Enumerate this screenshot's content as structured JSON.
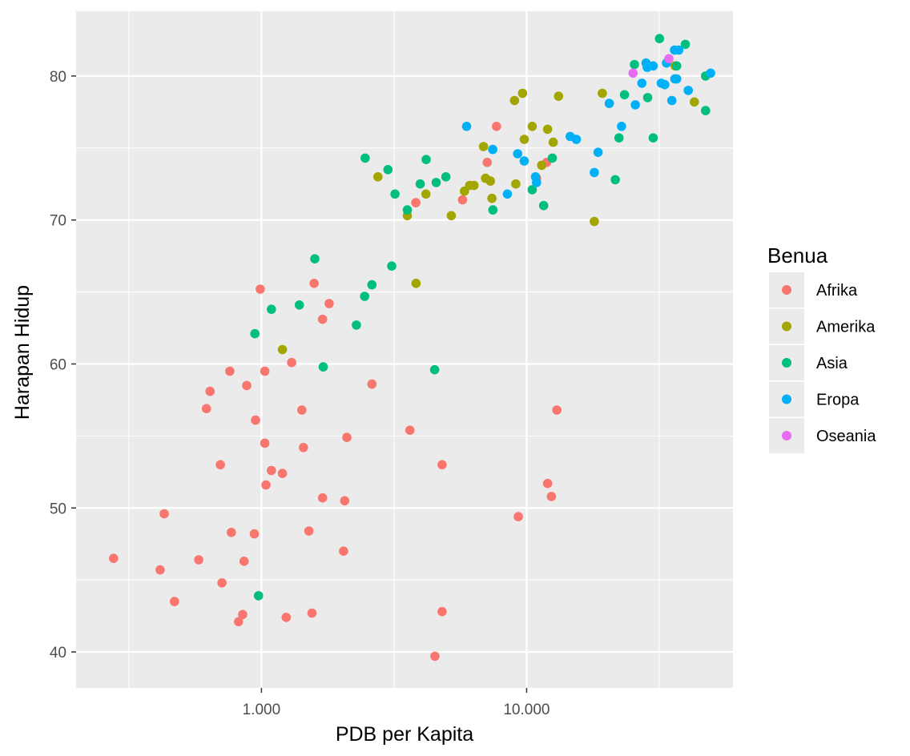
{
  "chart_data": {
    "type": "scatter",
    "title": "",
    "xlabel": "PDB per Kapita",
    "ylabel": "Harapan Hidup",
    "x_scale": "log10",
    "xlim": [
      200,
      60000
    ],
    "ylim": [
      37.5,
      84.5
    ],
    "x_ticks": [
      {
        "value": 1000,
        "label": "1.000"
      },
      {
        "value": 10000,
        "label": "10.000"
      }
    ],
    "y_ticks": [
      {
        "value": 40,
        "label": "40"
      },
      {
        "value": 50,
        "label": "50"
      },
      {
        "value": 60,
        "label": "60"
      },
      {
        "value": 70,
        "label": "70"
      },
      {
        "value": 80,
        "label": "80"
      }
    ],
    "legend_title": "Benua",
    "legend_position": "right",
    "grid": true,
    "series": [
      {
        "name": "Afrika",
        "color": "#F8766D",
        "points": [
          [
            277,
            46.5
          ],
          [
            415,
            45.7
          ],
          [
            430,
            49.6
          ],
          [
            470,
            43.5
          ],
          [
            580,
            46.4
          ],
          [
            620,
            56.9
          ],
          [
            640,
            58.1
          ],
          [
            700,
            53.0
          ],
          [
            710,
            44.8
          ],
          [
            760,
            59.5
          ],
          [
            770,
            48.3
          ],
          [
            820,
            42.1
          ],
          [
            850,
            42.6
          ],
          [
            860,
            46.3
          ],
          [
            880,
            58.5
          ],
          [
            940,
            48.2
          ],
          [
            950,
            56.1
          ],
          [
            990,
            65.2
          ],
          [
            1030,
            59.5
          ],
          [
            1030,
            54.5
          ],
          [
            1040,
            51.6
          ],
          [
            1090,
            52.6
          ],
          [
            1200,
            52.4
          ],
          [
            1240,
            42.4
          ],
          [
            1300,
            60.1
          ],
          [
            1420,
            56.8
          ],
          [
            1440,
            54.2
          ],
          [
            1510,
            48.4
          ],
          [
            1550,
            42.7
          ],
          [
            1580,
            65.6
          ],
          [
            1700,
            63.1
          ],
          [
            1700,
            50.7
          ],
          [
            1800,
            64.2
          ],
          [
            2040,
            47.0
          ],
          [
            2060,
            50.5
          ],
          [
            2100,
            54.9
          ],
          [
            2610,
            58.6
          ],
          [
            3630,
            55.4
          ],
          [
            3820,
            71.2
          ],
          [
            4510,
            39.7
          ],
          [
            4800,
            53.0
          ],
          [
            4800,
            42.8
          ],
          [
            5730,
            71.4
          ],
          [
            7100,
            74.0
          ],
          [
            7700,
            76.5
          ],
          [
            9300,
            49.4
          ],
          [
            10900,
            72.9
          ],
          [
            11900,
            74.0
          ],
          [
            12000,
            51.7
          ],
          [
            12400,
            50.8
          ],
          [
            13000,
            56.8
          ]
        ]
      },
      {
        "name": "Amerika",
        "color": "#A3A500",
        "points": [
          [
            1200,
            61.0
          ],
          [
            2750,
            73.0
          ],
          [
            3550,
            70.3
          ],
          [
            3830,
            65.6
          ],
          [
            4170,
            71.8
          ],
          [
            5200,
            70.3
          ],
          [
            5830,
            72.0
          ],
          [
            6100,
            72.4
          ],
          [
            6330,
            72.4
          ],
          [
            6880,
            75.1
          ],
          [
            7000,
            72.9
          ],
          [
            7300,
            72.7
          ],
          [
            7400,
            71.5
          ],
          [
            9000,
            78.3
          ],
          [
            9100,
            72.5
          ],
          [
            9650,
            78.8
          ],
          [
            9800,
            75.6
          ],
          [
            10500,
            76.5
          ],
          [
            11400,
            73.8
          ],
          [
            12000,
            76.3
          ],
          [
            12600,
            75.4
          ],
          [
            13200,
            78.6
          ],
          [
            18000,
            69.9
          ],
          [
            19300,
            78.8
          ],
          [
            36300,
            80.7
          ],
          [
            42900,
            78.2
          ]
        ]
      },
      {
        "name": "Asia",
        "color": "#00BF7D",
        "points": [
          [
            975,
            43.9
          ],
          [
            945,
            62.1
          ],
          [
            1090,
            63.8
          ],
          [
            1390,
            64.1
          ],
          [
            1590,
            67.3
          ],
          [
            1710,
            59.8
          ],
          [
            2280,
            62.7
          ],
          [
            2460,
            74.3
          ],
          [
            2450,
            64.7
          ],
          [
            2610,
            65.5
          ],
          [
            3000,
            73.5
          ],
          [
            3100,
            66.8
          ],
          [
            3190,
            71.8
          ],
          [
            3550,
            70.7
          ],
          [
            3970,
            72.5
          ],
          [
            4180,
            74.2
          ],
          [
            4500,
            59.6
          ],
          [
            4560,
            72.6
          ],
          [
            4960,
            73.0
          ],
          [
            7460,
            70.7
          ],
          [
            10500,
            72.1
          ],
          [
            11600,
            71.0
          ],
          [
            12500,
            74.3
          ],
          [
            21600,
            72.8
          ],
          [
            22300,
            75.7
          ],
          [
            23400,
            78.7
          ],
          [
            25500,
            80.8
          ],
          [
            28600,
            78.5
          ],
          [
            30000,
            75.7
          ],
          [
            31700,
            82.6
          ],
          [
            36800,
            80.7
          ],
          [
            39700,
            82.2
          ],
          [
            47300,
            80.0
          ],
          [
            47300,
            77.6
          ]
        ]
      },
      {
        "name": "Eropa",
        "color": "#00B0F6",
        "points": [
          [
            5940,
            76.5
          ],
          [
            7450,
            74.9
          ],
          [
            8460,
            71.8
          ],
          [
            9250,
            74.6
          ],
          [
            9790,
            74.1
          ],
          [
            10800,
            73.0
          ],
          [
            10900,
            72.6
          ],
          [
            14600,
            75.8
          ],
          [
            15400,
            75.6
          ],
          [
            18000,
            73.3
          ],
          [
            18600,
            74.7
          ],
          [
            20500,
            78.1
          ],
          [
            22800,
            76.5
          ],
          [
            25700,
            78.0
          ],
          [
            27200,
            79.5
          ],
          [
            28200,
            80.9
          ],
          [
            28500,
            80.6
          ],
          [
            30000,
            80.7
          ],
          [
            32200,
            79.5
          ],
          [
            33200,
            79.4
          ],
          [
            33700,
            80.9
          ],
          [
            35300,
            78.3
          ],
          [
            36100,
            81.8
          ],
          [
            36200,
            79.8
          ],
          [
            36800,
            79.8
          ],
          [
            37500,
            81.8
          ],
          [
            40700,
            79.0
          ],
          [
            49400,
            80.2
          ]
        ]
      },
      {
        "name": "Oseania",
        "color": "#E76BF3",
        "points": [
          [
            25200,
            80.2
          ],
          [
            34400,
            81.2
          ]
        ]
      }
    ]
  }
}
